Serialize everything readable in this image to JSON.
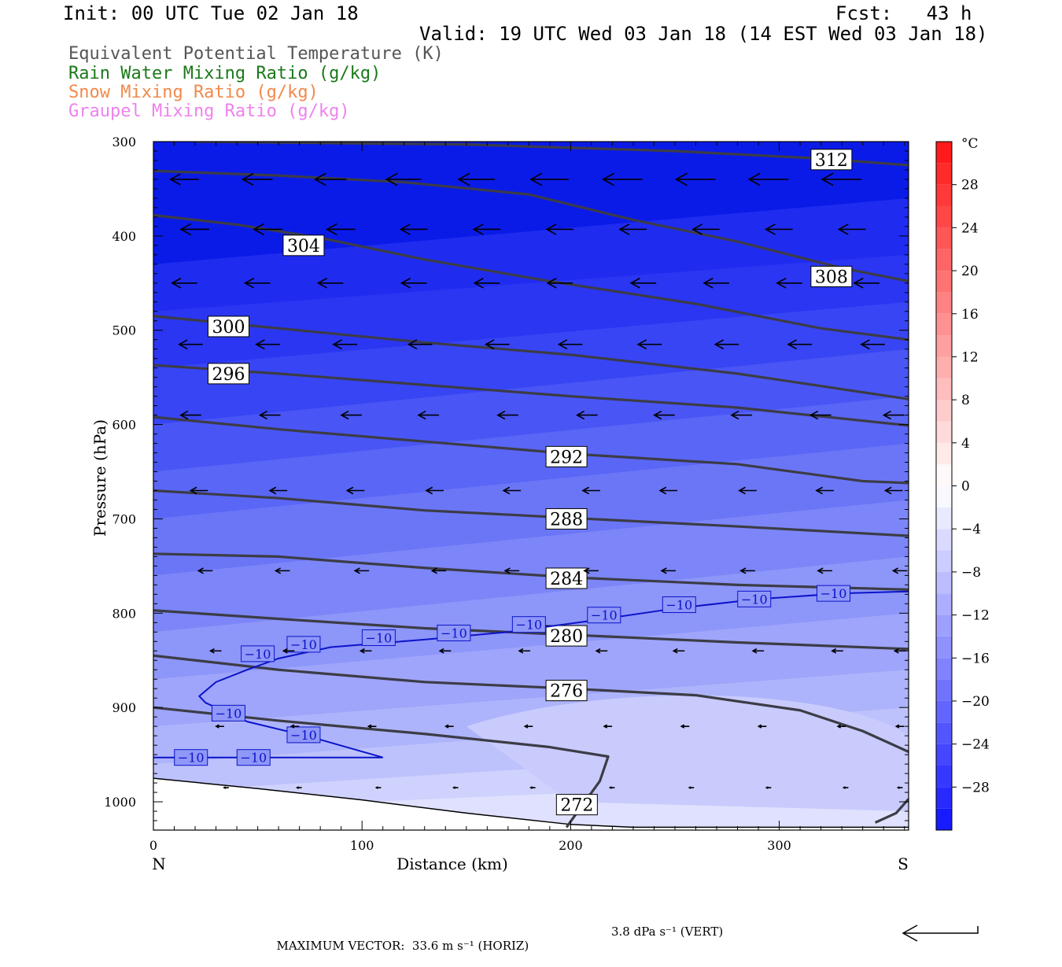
{
  "header": {
    "init": "Init: 00 UTC Tue 02 Jan 18",
    "fcst": "Fcst:   43 h",
    "valid": "Valid: 19 UTC Wed 03 Jan 18 (14 EST Wed 03 Jan 18)"
  },
  "legend": [
    {
      "label": "Equivalent Potential Temperature (K)",
      "color": "#555555"
    },
    {
      "label": "Rain Water Mixing Ratio (g/kg)",
      "color": "#1a7a1a"
    },
    {
      "label": "Snow Mixing Ratio (g/kg)",
      "color": "#f08a4b"
    },
    {
      "label": "Graupel Mixing Ratio (g/kg)",
      "color": "#ee82ee"
    }
  ],
  "footer": {
    "horiz": "MAXIMUM VECTOR:  33.6 m s⁻¹ (HORIZ)",
    "vert": "3.8 dPa s⁻¹ (VERT)"
  },
  "chart_data": {
    "type": "contour",
    "xlabel": "Distance (km)",
    "ylabel": "Pressure (hPa)",
    "xlim": [
      0,
      362
    ],
    "ylim": [
      1030,
      300
    ],
    "x_ticks": [
      0,
      100,
      200,
      300
    ],
    "y_ticks": [
      300,
      400,
      500,
      600,
      700,
      800,
      900,
      1000
    ],
    "x_end_labels": {
      "left": "N",
      "right": "S"
    },
    "colorbar": {
      "unit": "°C",
      "labels": [
        28,
        24,
        20,
        16,
        12,
        8,
        4,
        0,
        -4,
        -8,
        -12,
        -16,
        -20,
        -24,
        -28
      ],
      "range": [
        -32,
        32
      ],
      "step": 2
    },
    "theta_e_contours": [
      {
        "value": 312,
        "label": "312",
        "label_pos": [
          325,
          319
        ],
        "points": [
          [
            20,
            300
          ],
          [
            150,
            303
          ],
          [
            250,
            310
          ],
          [
            320,
            318
          ],
          [
            362,
            325
          ]
        ]
      },
      {
        "value": 308,
        "label": "308",
        "label_pos": [
          325,
          443
        ],
        "points": [
          [
            0,
            331
          ],
          [
            60,
            336
          ],
          [
            120,
            343
          ],
          [
            180,
            356
          ],
          [
            230,
            383
          ],
          [
            280,
            406
          ],
          [
            330,
            434
          ],
          [
            362,
            448
          ]
        ]
      },
      {
        "value": 304,
        "label": "304",
        "label_pos": [
          72,
          410
        ],
        "points": [
          [
            0,
            378
          ],
          [
            40,
            388
          ],
          [
            80,
            402
          ],
          [
            130,
            425
          ],
          [
            190,
            448
          ],
          [
            260,
            472
          ],
          [
            320,
            498
          ],
          [
            362,
            510
          ]
        ]
      },
      {
        "value": 300,
        "label": "300",
        "label_pos": [
          36,
          496
        ],
        "points": [
          [
            0,
            485
          ],
          [
            60,
            498
          ],
          [
            130,
            513
          ],
          [
            200,
            526
          ],
          [
            280,
            546
          ],
          [
            362,
            573
          ]
        ]
      },
      {
        "value": 296,
        "label": "296",
        "label_pos": [
          36,
          546
        ],
        "points": [
          [
            0,
            537
          ],
          [
            60,
            546
          ],
          [
            130,
            558
          ],
          [
            200,
            570
          ],
          [
            280,
            582
          ],
          [
            362,
            601
          ]
        ]
      },
      {
        "value": 292,
        "label": "292",
        "label_pos": [
          198,
          634
        ],
        "points": [
          [
            0,
            592
          ],
          [
            60,
            605
          ],
          [
            130,
            618
          ],
          [
            200,
            631
          ],
          [
            280,
            642
          ],
          [
            340,
            660
          ],
          [
            362,
            662
          ]
        ]
      },
      {
        "value": 288,
        "label": "288",
        "label_pos": [
          198,
          700
        ],
        "points": [
          [
            0,
            670
          ],
          [
            60,
            678
          ],
          [
            130,
            691
          ],
          [
            200,
            699
          ],
          [
            280,
            708
          ],
          [
            362,
            718
          ]
        ]
      },
      {
        "value": 284,
        "label": "284",
        "label_pos": [
          198,
          763
        ],
        "points": [
          [
            0,
            737
          ],
          [
            60,
            740
          ],
          [
            130,
            752
          ],
          [
            200,
            762
          ],
          [
            280,
            770
          ],
          [
            362,
            775
          ]
        ]
      },
      {
        "value": 280,
        "label": "280",
        "label_pos": [
          198,
          824
        ],
        "points": [
          [
            0,
            797
          ],
          [
            60,
            806
          ],
          [
            130,
            816
          ],
          [
            200,
            823
          ],
          [
            280,
            831
          ],
          [
            362,
            838
          ]
        ]
      },
      {
        "value": 276,
        "label": "276",
        "label_pos": [
          198,
          882
        ],
        "points": [
          [
            0,
            845
          ],
          [
            60,
            860
          ],
          [
            130,
            873
          ],
          [
            200,
            880
          ],
          [
            260,
            887
          ],
          [
            310,
            903
          ],
          [
            340,
            925
          ],
          [
            362,
            947
          ]
        ]
      },
      {
        "value": 272,
        "label": "272",
        "label_pos": [
          203,
          1003
        ],
        "points": [
          [
            0,
            900
          ],
          [
            60,
            914
          ],
          [
            130,
            928
          ],
          [
            190,
            942
          ],
          [
            218,
            952
          ],
          [
            214,
            978
          ],
          [
            198,
            1027
          ]
        ]
      },
      {
        "value": 272,
        "label": "",
        "label_pos": null,
        "points": [
          [
            346,
            1022
          ],
          [
            356,
            1012
          ],
          [
            362,
            997
          ]
        ]
      }
    ],
    "temp_contours": [
      {
        "value": -10,
        "label": "−10",
        "labels_at": [
          [
            18,
            953
          ],
          [
            48,
            953
          ],
          [
            36,
            906
          ],
          [
            72,
            929
          ],
          [
            50,
            843
          ],
          [
            72,
            833
          ],
          [
            108,
            826
          ],
          [
            144,
            821
          ],
          [
            180,
            812
          ],
          [
            216,
            802
          ],
          [
            252,
            791
          ],
          [
            288,
            785
          ],
          [
            326,
            779
          ]
        ],
        "points": [
          [
            0,
            953
          ],
          [
            110,
            953
          ],
          [
            75,
            931
          ],
          [
            45,
            915
          ],
          [
            25,
            895
          ],
          [
            22,
            888
          ],
          [
            30,
            873
          ],
          [
            45,
            860
          ],
          [
            60,
            848
          ],
          [
            85,
            836
          ],
          [
            130,
            828
          ],
          [
            170,
            820
          ],
          [
            210,
            808
          ],
          [
            250,
            795
          ],
          [
            290,
            785
          ],
          [
            330,
            779
          ],
          [
            362,
            777
          ]
        ]
      }
    ],
    "terrain": {
      "points": [
        [
          0,
          975
        ],
        [
          50,
          986
        ],
        [
          100,
          998
        ],
        [
          150,
          1012
        ],
        [
          200,
          1024
        ],
        [
          230,
          1027
        ],
        [
          362,
          1027
        ]
      ]
    },
    "wind_rows": [
      {
        "p": 340,
        "xs": [
          15,
          50,
          85,
          120,
          155,
          190,
          225,
          260,
          295,
          330
        ],
        "lens": [
          36,
          38,
          40,
          44,
          46,
          48,
          50,
          50,
          50,
          50
        ]
      },
      {
        "p": 393,
        "xs": [
          20,
          55,
          90,
          125,
          160,
          195,
          230,
          265,
          300,
          335
        ],
        "lens": [
          36,
          36,
          36,
          34,
          34,
          34,
          34,
          34,
          34,
          34
        ]
      },
      {
        "p": 450,
        "xs": [
          15,
          50,
          85,
          125,
          160,
          195,
          235,
          270,
          305,
          342
        ],
        "lens": [
          32,
          32,
          32,
          32,
          32,
          32,
          32,
          32,
          32,
          32
        ]
      },
      {
        "p": 515,
        "xs": [
          18,
          55,
          92,
          128,
          165,
          200,
          238,
          275,
          310,
          345
        ],
        "lens": [
          30,
          30,
          30,
          30,
          30,
          30,
          30,
          30,
          30,
          30
        ]
      },
      {
        "p": 590,
        "xs": [
          18,
          56,
          95,
          132,
          170,
          208,
          245,
          282,
          320,
          355
        ],
        "lens": [
          26,
          26,
          26,
          26,
          26,
          26,
          26,
          26,
          26,
          26
        ]
      },
      {
        "p": 670,
        "xs": [
          22,
          60,
          97,
          135,
          172,
          210,
          247,
          285,
          322,
          355
        ],
        "lens": [
          22,
          22,
          22,
          22,
          22,
          22,
          22,
          22,
          22,
          22
        ]
      },
      {
        "p": 755,
        "xs": [
          25,
          62,
          100,
          137,
          172,
          210,
          247,
          285,
          322,
          358
        ],
        "lens": [
          18,
          18,
          18,
          18,
          18,
          18,
          18,
          18,
          18,
          18
        ]
      },
      {
        "p": 840,
        "xs": [
          30,
          65,
          102,
          140,
          178,
          215,
          252,
          290,
          328,
          358
        ],
        "lens": [
          14,
          14,
          14,
          14,
          14,
          14,
          14,
          14,
          14,
          14
        ]
      },
      {
        "p": 920,
        "xs": [
          32,
          68,
          105,
          142,
          180,
          218,
          255,
          292,
          330,
          358
        ],
        "lens": [
          10,
          10,
          10,
          10,
          10,
          10,
          10,
          10,
          10,
          10
        ]
      },
      {
        "p": 985,
        "xs": [
          35,
          70,
          108,
          145,
          182,
          220,
          258,
          295,
          332,
          358
        ],
        "lens": [
          6,
          6,
          6,
          6,
          6,
          6,
          6,
          6,
          6,
          6
        ]
      }
    ]
  }
}
